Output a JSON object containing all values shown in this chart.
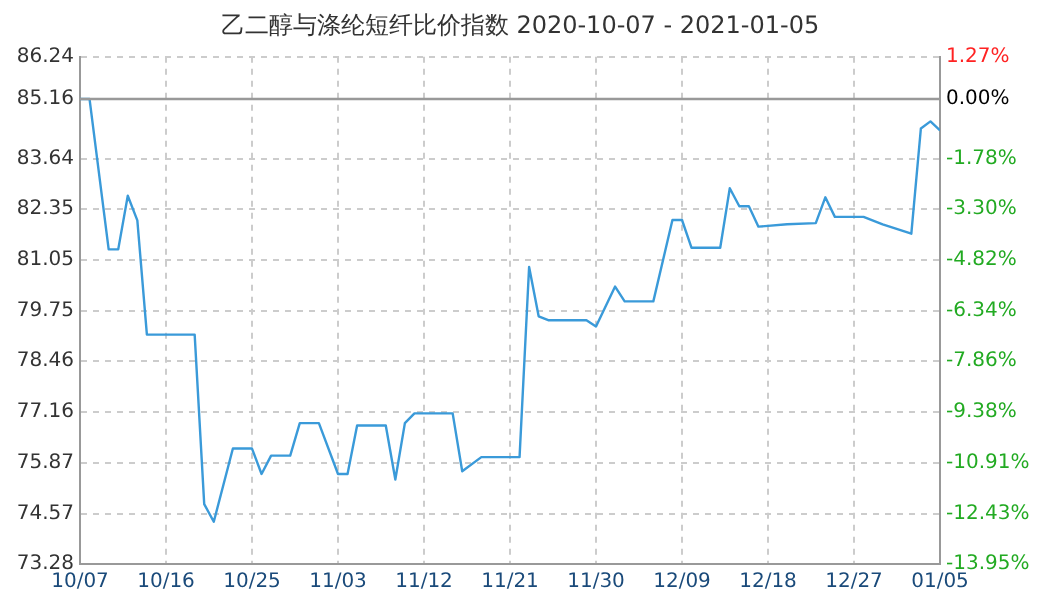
{
  "chart_data": {
    "type": "line",
    "title": "乙二醇与涤纶短纤比价指数 2020-10-07 - 2021-01-05",
    "x": [
      "2020-10-07",
      "2020-10-08",
      "2020-10-10",
      "2020-10-11",
      "2020-10-12",
      "2020-10-13",
      "2020-10-14",
      "2020-10-19",
      "2020-10-20",
      "2020-10-21",
      "2020-10-23",
      "2020-10-25",
      "2020-10-26",
      "2020-10-27",
      "2020-10-29",
      "2020-10-30",
      "2020-11-01",
      "2020-11-03",
      "2020-11-04",
      "2020-11-05",
      "2020-11-08",
      "2020-11-09",
      "2020-11-10",
      "2020-11-11",
      "2020-11-15",
      "2020-11-16",
      "2020-11-18",
      "2020-11-22",
      "2020-11-23",
      "2020-11-24",
      "2020-11-25",
      "2020-11-29",
      "2020-11-30",
      "2020-12-02",
      "2020-12-03",
      "2020-12-06",
      "2020-12-08",
      "2020-12-09",
      "2020-12-10",
      "2020-12-13",
      "2020-12-14",
      "2020-12-15",
      "2020-12-16",
      "2020-12-17",
      "2020-12-20",
      "2020-12-23",
      "2020-12-24",
      "2020-12-25",
      "2020-12-28",
      "2020-12-30",
      "2021-01-02",
      "2021-01-03",
      "2021-01-04",
      "2021-01-05"
    ],
    "series": [
      {
        "color": "#3a9ad9",
        "values": [
          85.16,
          85.16,
          81.32,
          81.32,
          82.69,
          82.06,
          79.14,
          79.14,
          74.81,
          74.36,
          76.23,
          76.23,
          75.58,
          76.05,
          76.05,
          76.88,
          76.88,
          75.58,
          75.58,
          76.82,
          76.82,
          75.44,
          76.88,
          77.13,
          77.13,
          75.65,
          76.01,
          76.01,
          80.87,
          79.61,
          79.51,
          79.51,
          79.35,
          80.37,
          79.99,
          79.99,
          82.07,
          82.07,
          81.36,
          81.36,
          82.88,
          82.42,
          82.42,
          81.9,
          81.96,
          81.99,
          82.65,
          82.15,
          82.15,
          81.96,
          81.72,
          84.41,
          84.59,
          84.36
        ]
      }
    ],
    "xlim": [
      "2020-10-07",
      "2021-01-05"
    ],
    "xticks": [
      {
        "value": "2020-10-07",
        "label": "10/07"
      },
      {
        "value": "2020-10-16",
        "label": "10/16"
      },
      {
        "value": "2020-10-25",
        "label": "10/25"
      },
      {
        "value": "2020-11-03",
        "label": "11/03"
      },
      {
        "value": "2020-11-12",
        "label": "11/12"
      },
      {
        "value": "2020-11-21",
        "label": "11/21"
      },
      {
        "value": "2020-11-30",
        "label": "11/30"
      },
      {
        "value": "2020-12-09",
        "label": "12/09"
      },
      {
        "value": "2020-12-18",
        "label": "12/18"
      },
      {
        "value": "2020-12-27",
        "label": "12/27"
      },
      {
        "value": "2021-01-05",
        "label": "01/05"
      }
    ],
    "ylim": [
      73.28,
      86.24
    ],
    "yticks": [
      73.28,
      74.57,
      75.87,
      77.16,
      78.46,
      79.75,
      81.05,
      82.35,
      83.64,
      85.16,
      86.24
    ],
    "y2lim": [
      -13.95,
      1.27
    ],
    "y2ticks": [
      {
        "value": -13.95,
        "label": "-13.95%"
      },
      {
        "value": -12.43,
        "label": "-12.43%"
      },
      {
        "value": -10.91,
        "label": "-10.91%"
      },
      {
        "value": -9.38,
        "label": "-9.38%"
      },
      {
        "value": -7.86,
        "label": "-7.86%"
      },
      {
        "value": -6.34,
        "label": "-6.34%"
      },
      {
        "value": -4.82,
        "label": "-4.82%"
      },
      {
        "value": -3.3,
        "label": "-3.30%"
      },
      {
        "value": -1.78,
        "label": "-1.78%"
      },
      {
        "value": 0,
        "label": "0.00%"
      },
      {
        "value": 1.27,
        "label": "1.27%"
      }
    ],
    "ref_lines": [
      {
        "axis": "y",
        "value": 85.16,
        "color": "#999999"
      }
    ],
    "grid": true,
    "legend": false,
    "marker": "none",
    "line_style": "solid"
  }
}
